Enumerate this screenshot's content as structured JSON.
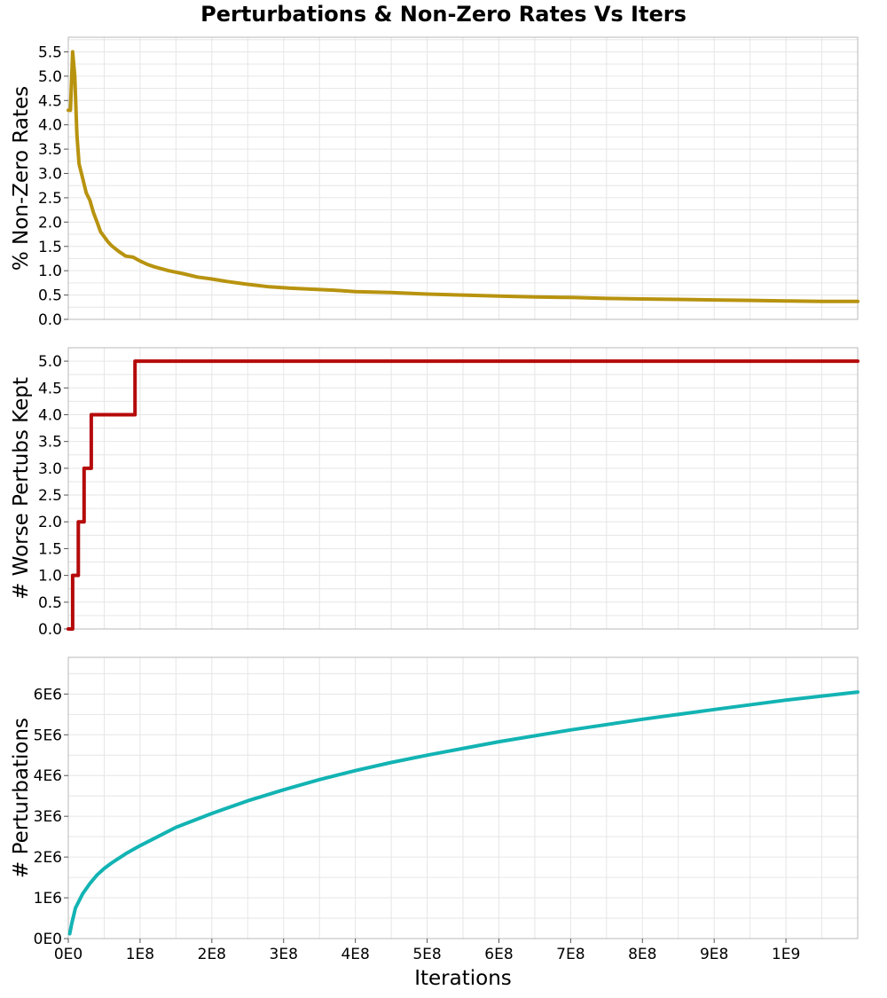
{
  "colors": {
    "nonzero": "#b8930f",
    "worse": "#b50a0a",
    "perturb": "#13b3b3",
    "grid": "#e6e6e6",
    "frame": "#b8b8b8"
  },
  "chart_data": [
    {
      "type": "line",
      "title": "Perturbations & Non-Zero Rates Vs Iters",
      "ylabel": "% Non-Zero Rates",
      "xlim": [
        0,
        1100000000
      ],
      "ylim": [
        0,
        5.8
      ],
      "yticks": [
        0,
        0.5,
        1.0,
        1.5,
        2.0,
        2.5,
        3.0,
        3.5,
        4.0,
        4.5,
        5.0,
        5.5
      ],
      "ytick_labels": [
        "0.0",
        "0.5",
        "1.0",
        "1.5",
        "2.0",
        "2.5",
        "3.0",
        "3.5",
        "4.0",
        "4.5",
        "5.0",
        "5.5"
      ],
      "grid": true,
      "series": [
        {
          "x": [
            0,
            3000000,
            6000000,
            9000000,
            12000000,
            15000000,
            20000000,
            25000000,
            30000000,
            35000000,
            40000000,
            45000000,
            50000000,
            55000000,
            60000000,
            70000000,
            80000000,
            90000000,
            100000000,
            110000000,
            120000000,
            140000000,
            160000000,
            180000000,
            200000000,
            220000000,
            250000000,
            280000000,
            310000000,
            340000000,
            370000000,
            400000000,
            450000000,
            500000000,
            550000000,
            600000000,
            650000000,
            700000000,
            750000000,
            800000000,
            850000000,
            900000000,
            950000000,
            1000000000,
            1050000000,
            1100000000
          ],
          "y": [
            4.3,
            4.3,
            5.5,
            5.0,
            3.8,
            3.2,
            2.9,
            2.6,
            2.45,
            2.2,
            2.0,
            1.8,
            1.7,
            1.6,
            1.52,
            1.4,
            1.3,
            1.28,
            1.2,
            1.13,
            1.08,
            1.0,
            0.94,
            0.87,
            0.83,
            0.78,
            0.72,
            0.67,
            0.64,
            0.62,
            0.6,
            0.57,
            0.55,
            0.52,
            0.5,
            0.48,
            0.46,
            0.45,
            0.43,
            0.42,
            0.41,
            0.4,
            0.39,
            0.38,
            0.37,
            0.37
          ]
        }
      ]
    },
    {
      "type": "line",
      "ylabel": "# Worse Pertubs Kept",
      "xlim": [
        0,
        1100000000
      ],
      "ylim": [
        0,
        5.25
      ],
      "yticks": [
        0,
        0.5,
        1.0,
        1.5,
        2.0,
        2.5,
        3.0,
        3.5,
        4.0,
        4.5,
        5.0
      ],
      "ytick_labels": [
        "0.0",
        "0.5",
        "1.0",
        "1.5",
        "2.0",
        "2.5",
        "3.0",
        "3.5",
        "4.0",
        "4.5",
        "5.0"
      ],
      "grid": true,
      "series": [
        {
          "x": [
            0,
            6000000,
            6000000,
            14000000,
            14000000,
            22000000,
            22000000,
            32000000,
            32000000,
            93000000,
            93000000,
            300000000,
            300000000,
            1100000000
          ],
          "y": [
            0,
            0,
            1,
            1,
            2,
            2,
            3,
            3,
            4,
            4,
            5,
            5,
            5,
            5
          ]
        }
      ]
    },
    {
      "type": "line",
      "ylabel": "# Perturbations",
      "xlabel": "Iterations",
      "xlim": [
        0,
        1100000000
      ],
      "ylim": [
        0,
        6900000
      ],
      "yticks": [
        0,
        1000000,
        2000000,
        3000000,
        4000000,
        5000000,
        6000000
      ],
      "ytick_labels": [
        "0E0",
        "1E6",
        "2E6",
        "3E6",
        "4E6",
        "5E6",
        "6E6"
      ],
      "xticks": [
        0,
        100000000,
        200000000,
        300000000,
        400000000,
        500000000,
        600000000,
        700000000,
        800000000,
        900000000,
        1000000000
      ],
      "xtick_labels": [
        "0E0",
        "1E8",
        "2E8",
        "3E8",
        "4E8",
        "5E8",
        "6E8",
        "7E8",
        "8E8",
        "9E8",
        "1E9"
      ],
      "grid": true,
      "series": [
        {
          "x": [
            2000000,
            5000000,
            10000000,
            20000000,
            30000000,
            40000000,
            50000000,
            60000000,
            80000000,
            100000000,
            150000000,
            200000000,
            250000000,
            300000000,
            350000000,
            400000000,
            450000000,
            500000000,
            600000000,
            700000000,
            800000000,
            900000000,
            1000000000,
            1100000000
          ],
          "y": [
            120000,
            380000,
            750000,
            1100000,
            1350000,
            1560000,
            1720000,
            1850000,
            2080000,
            2280000,
            2730000,
            3070000,
            3380000,
            3650000,
            3900000,
            4120000,
            4320000,
            4500000,
            4830000,
            5120000,
            5380000,
            5620000,
            5850000,
            6050000
          ]
        }
      ]
    }
  ]
}
